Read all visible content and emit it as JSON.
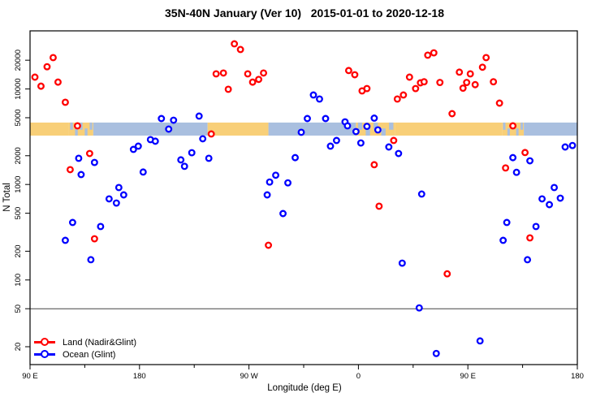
{
  "title": "35N-40N January (Ver 10)   2015-01-01 to 2020-12-18",
  "legend": [
    {
      "label": "Land (Nadir&Glint)",
      "color": "#ff0000"
    },
    {
      "label": "Ocean (Glint)",
      "color": "#0000ff"
    }
  ],
  "chart_data": {
    "type": "scatter",
    "title": "35N-40N January (Ver 10)   2015-01-01 to 2020-12-18",
    "xlabel": "Longitude (deg E)",
    "ylabel": "N Total",
    "x_axis": {
      "xlim": [
        90,
        540
      ],
      "note": "longitude unwrapped eastward from 90E; 270=90W, 360=0, 450=90E, 540=180",
      "major_ticks": [
        {
          "v": 90,
          "label": "90 E"
        },
        {
          "v": 180,
          "label": "180"
        },
        {
          "v": 270,
          "label": "90 W"
        },
        {
          "v": 360,
          "label": "0"
        },
        {
          "v": 450,
          "label": "90 E"
        },
        {
          "v": 540,
          "label": "180"
        }
      ],
      "minor_ticks": [
        135,
        225,
        315,
        405,
        495
      ]
    },
    "y_axis": {
      "scale": "log",
      "ylim": [
        13,
        40600
      ],
      "ticks": [
        20000,
        10000,
        5000,
        2000,
        1000,
        500,
        200,
        100,
        50,
        20
      ]
    },
    "reference_line_y": 50,
    "coast_band": {
      "top_n": 4450,
      "bottom_n": 3250,
      "land_color": "#f8cf78",
      "ocean_color": "#a9bfdf",
      "segments": [
        {
          "from": 90,
          "to": 122,
          "type": "land"
        },
        {
          "from": 122,
          "to": 142,
          "type": "coast"
        },
        {
          "from": 142,
          "to": 236,
          "type": "ocean"
        },
        {
          "from": 236,
          "to": 286,
          "type": "land"
        },
        {
          "from": 286,
          "to": 358,
          "type": "ocean"
        },
        {
          "from": 358,
          "to": 390,
          "type": "coast"
        },
        {
          "from": 390,
          "to": 478,
          "type": "land"
        },
        {
          "from": 478,
          "to": 496,
          "type": "coast"
        },
        {
          "from": 496,
          "to": 540,
          "type": "ocean"
        }
      ]
    },
    "series": [
      {
        "name": "Land (Nadir&Glint)",
        "color": "#ff0000",
        "points": [
          [
            94,
            13300
          ],
          [
            99,
            10700
          ],
          [
            104,
            17100
          ],
          [
            109,
            21300
          ],
          [
            113,
            11800
          ],
          [
            119,
            7260
          ],
          [
            123,
            1430
          ],
          [
            129,
            4110
          ],
          [
            139,
            2110
          ],
          [
            143,
            270
          ],
          [
            239,
            3380
          ],
          [
            243,
            14400
          ],
          [
            249,
            14700
          ],
          [
            253,
            9930
          ],
          [
            258,
            29700
          ],
          [
            263,
            25900
          ],
          [
            269,
            14400
          ],
          [
            273,
            11800
          ],
          [
            278,
            12600
          ],
          [
            282,
            14700
          ],
          [
            286,
            231
          ],
          [
            352,
            15600
          ],
          [
            357,
            14100
          ],
          [
            363,
            9550
          ],
          [
            367,
            10100
          ],
          [
            373,
            1610
          ],
          [
            377,
            592
          ],
          [
            389,
            2890
          ],
          [
            392,
            7850
          ],
          [
            397,
            8650
          ],
          [
            402,
            13300
          ],
          [
            407,
            10100
          ],
          [
            411,
            11600
          ],
          [
            414,
            11900
          ],
          [
            417,
            22600
          ],
          [
            422,
            23900
          ],
          [
            427,
            11700
          ],
          [
            433,
            116
          ],
          [
            437,
            5510
          ],
          [
            443,
            15000
          ],
          [
            446,
            10200
          ],
          [
            449,
            11700
          ],
          [
            452,
            14400
          ],
          [
            456,
            11100
          ],
          [
            462,
            16900
          ],
          [
            465,
            21300
          ],
          [
            471,
            11900
          ],
          [
            476,
            7110
          ],
          [
            481,
            1490
          ],
          [
            487,
            4110
          ],
          [
            497,
            2160
          ],
          [
            501,
            276
          ]
        ]
      },
      {
        "name": "Ocean (Glint)",
        "color": "#0000ff",
        "points": [
          [
            119,
            260
          ],
          [
            125,
            400
          ],
          [
            130,
            1880
          ],
          [
            132,
            1270
          ],
          [
            140,
            163
          ],
          [
            143,
            1700
          ],
          [
            148,
            363
          ],
          [
            155,
            707
          ],
          [
            161,
            639
          ],
          [
            163,
            929
          ],
          [
            167,
            778
          ],
          [
            175,
            2330
          ],
          [
            179,
            2520
          ],
          [
            183,
            1350
          ],
          [
            189,
            2950
          ],
          [
            193,
            2840
          ],
          [
            198,
            4900
          ],
          [
            204,
            3800
          ],
          [
            208,
            4710
          ],
          [
            214,
            1810
          ],
          [
            217,
            1550
          ],
          [
            223,
            2150
          ],
          [
            229,
            5200
          ],
          [
            232,
            3010
          ],
          [
            237,
            1880
          ],
          [
            285,
            778
          ],
          [
            287,
            1060
          ],
          [
            292,
            1250
          ],
          [
            298,
            496
          ],
          [
            302,
            1040
          ],
          [
            308,
            1910
          ],
          [
            313,
            3520
          ],
          [
            318,
            4900
          ],
          [
            323,
            8650
          ],
          [
            328,
            7850
          ],
          [
            333,
            4900
          ],
          [
            337,
            2520
          ],
          [
            342,
            2890
          ],
          [
            349,
            4530
          ],
          [
            351,
            4110
          ],
          [
            358,
            3580
          ],
          [
            362,
            2720
          ],
          [
            367,
            4060
          ],
          [
            373,
            4950
          ],
          [
            376,
            3730
          ],
          [
            385,
            2470
          ],
          [
            393,
            2110
          ],
          [
            396,
            150
          ],
          [
            410,
            51
          ],
          [
            412,
            794
          ],
          [
            424,
            17
          ],
          [
            460,
            23
          ],
          [
            479,
            260
          ],
          [
            482,
            400
          ],
          [
            487,
            1910
          ],
          [
            490,
            1340
          ],
          [
            499,
            163
          ],
          [
            501,
            1770
          ],
          [
            506,
            363
          ],
          [
            511,
            707
          ],
          [
            517,
            615
          ],
          [
            521,
            929
          ],
          [
            526,
            719
          ],
          [
            530,
            2470
          ],
          [
            536,
            2560
          ]
        ]
      }
    ]
  }
}
